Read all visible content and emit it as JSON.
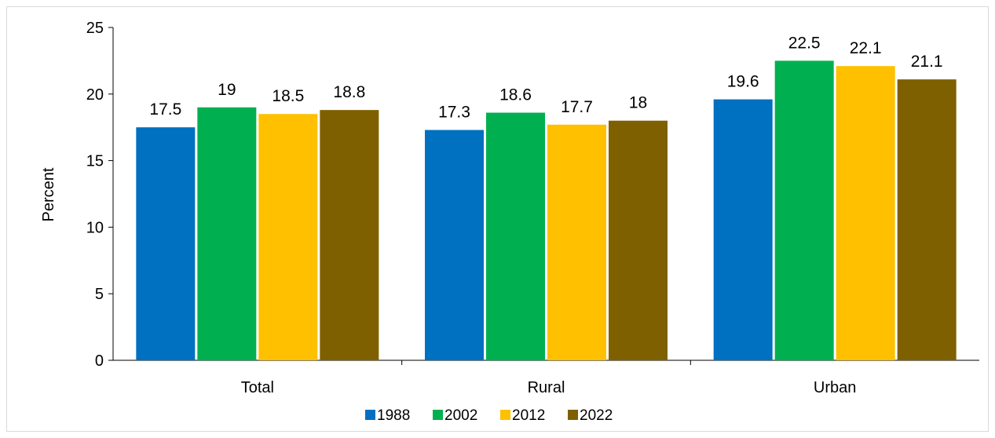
{
  "chart_data": {
    "type": "bar",
    "title": "",
    "xlabel": "",
    "ylabel": "Percent",
    "ylim": [
      0,
      25
    ],
    "yticks": [
      0,
      5,
      10,
      15,
      20,
      25
    ],
    "grid": false,
    "legend_position": "bottom",
    "categories": [
      "Total",
      "Rural",
      "Urban"
    ],
    "series": [
      {
        "name": "1988",
        "color": "#0070c0",
        "values": [
          17.5,
          17.3,
          19.6
        ]
      },
      {
        "name": "2002",
        "color": "#00b050",
        "values": [
          19,
          18.6,
          22.5
        ]
      },
      {
        "name": "2012",
        "color": "#ffc000",
        "values": [
          18.5,
          17.7,
          22.1
        ]
      },
      {
        "name": "2022",
        "color": "#7f6000",
        "values": [
          18.8,
          18,
          21.1
        ]
      }
    ]
  }
}
